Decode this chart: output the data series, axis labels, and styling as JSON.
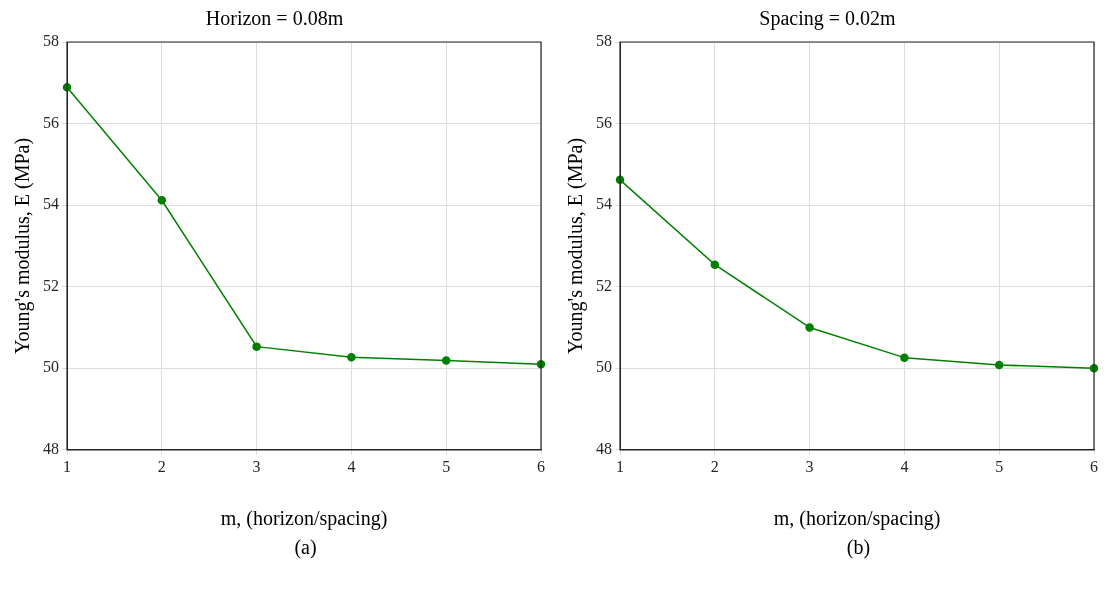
{
  "chart_data": [
    {
      "type": "line",
      "title": "Horizon = 0.08m",
      "xlabel": "m, (horizon/spacing)",
      "ylabel": "Young's modulus, E (MPa)",
      "annotations": [
        "(a)"
      ],
      "x": [
        1,
        2,
        3,
        4,
        5,
        6
      ],
      "series": [
        {
          "color": "#008000",
          "values": [
            56.89,
            54.12,
            50.53,
            50.27,
            50.19,
            50.1
          ]
        }
      ],
      "xlim": [
        1,
        6
      ],
      "xticks": [
        1,
        2,
        3,
        4,
        5,
        6
      ],
      "ylim": [
        48,
        58
      ],
      "yticks": [
        48,
        50,
        52,
        54,
        56,
        58
      ],
      "grid": true,
      "marker": "circle",
      "line_style": "solid"
    },
    {
      "type": "line",
      "title": "Spacing = 0.02m",
      "xlabel": "m, (horizon/spacing)",
      "ylabel": "Young's modulus, E (MPa)",
      "annotations": [
        "(b)"
      ],
      "x": [
        1,
        2,
        3,
        4,
        5,
        6
      ],
      "series": [
        {
          "color": "#008000",
          "values": [
            54.62,
            52.54,
            51.0,
            50.26,
            50.08,
            50.0
          ]
        }
      ],
      "xlim": [
        1,
        6
      ],
      "xticks": [
        1,
        2,
        3,
        4,
        5,
        6
      ],
      "ylim": [
        48,
        58
      ],
      "yticks": [
        48,
        50,
        52,
        54,
        56,
        58
      ],
      "grid": true,
      "marker": "circle",
      "line_style": "solid"
    }
  ]
}
